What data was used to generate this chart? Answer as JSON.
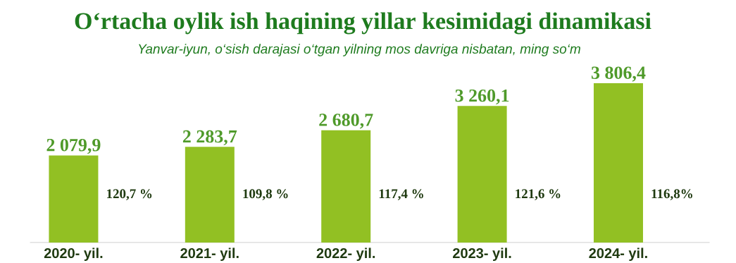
{
  "chart_data": {
    "type": "bar",
    "title": "O‘rtacha oylik ish haqining yillar kesimidagi dinamikasi",
    "subtitle": "Yanvar-iyun, o‘sish darajasi o‘tgan yilning mos davriga nisbatan, ming so‘m",
    "categories": [
      "2020- yil.",
      "2021- yil.",
      "2022- yil.",
      "2023- yil.",
      "2024- yil."
    ],
    "values": [
      2079.9,
      2283.7,
      2680.7,
      3260.1,
      3806.4
    ],
    "value_labels": [
      "2 079,9",
      "2 283,7",
      "2 680,7",
      "3 260,1",
      "3 806,4"
    ],
    "color": "#92c023",
    "annotations": [
      "120,7 %",
      "109,8 %",
      "117,4 %",
      "121,6 %",
      "116,8%"
    ]
  }
}
